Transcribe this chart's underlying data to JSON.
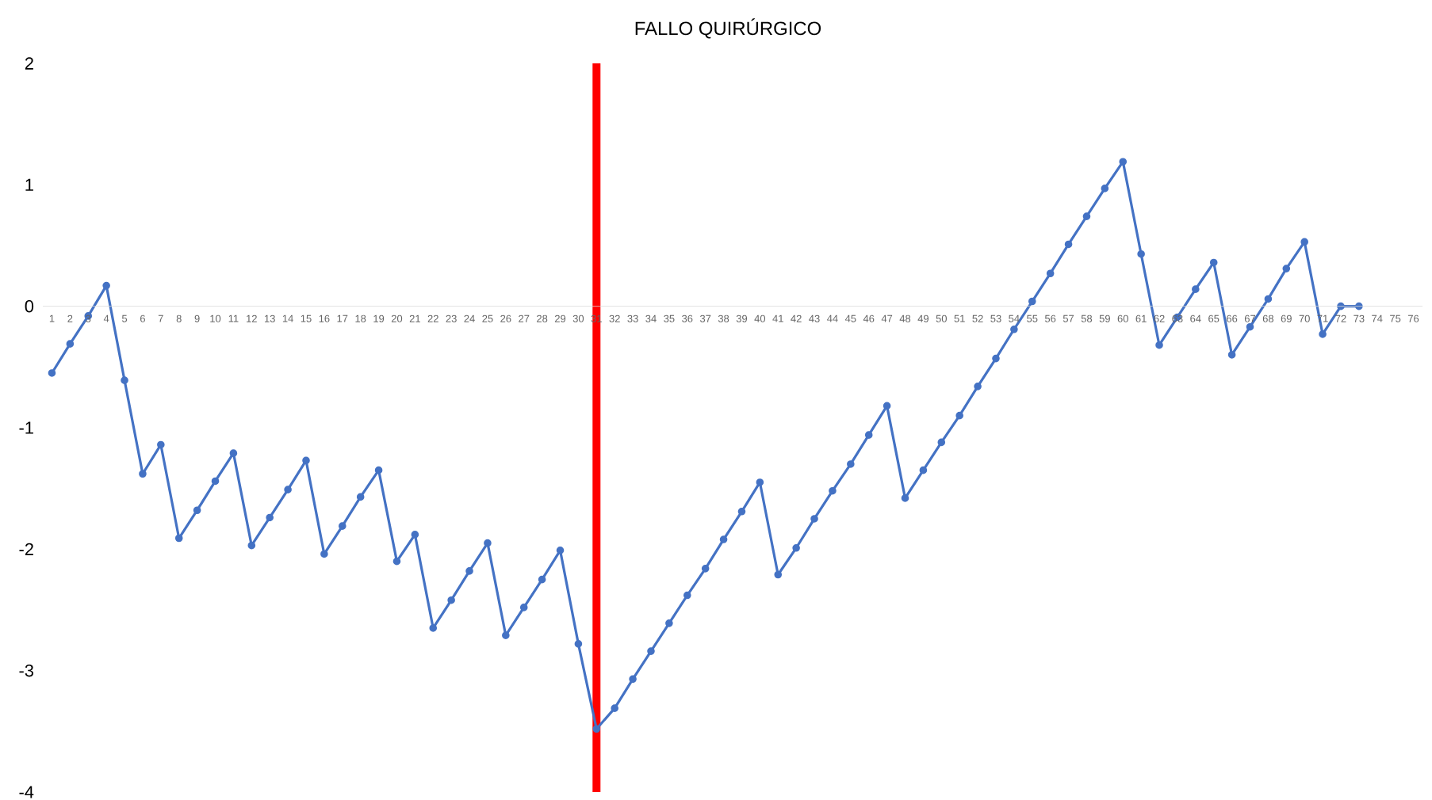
{
  "chart_data": {
    "type": "line",
    "title": "FALLO QUIRÚRGICO",
    "x": [
      1,
      2,
      3,
      4,
      5,
      6,
      7,
      8,
      9,
      10,
      11,
      12,
      13,
      14,
      15,
      16,
      17,
      18,
      19,
      20,
      21,
      22,
      23,
      24,
      25,
      26,
      27,
      28,
      29,
      30,
      31,
      32,
      33,
      34,
      35,
      36,
      37,
      38,
      39,
      40,
      41,
      42,
      43,
      44,
      45,
      46,
      47,
      48,
      49,
      50,
      51,
      52,
      53,
      54,
      55,
      56,
      57,
      58,
      59,
      60,
      61,
      62,
      63,
      64,
      65,
      66,
      67,
      68,
      69,
      70,
      71,
      72,
      73
    ],
    "series": [
      {
        "color": "#4472c4",
        "values": [
          -0.55,
          -0.31,
          -0.08,
          0.17,
          -0.61,
          -1.38,
          -1.14,
          -1.91,
          -1.68,
          -1.44,
          -1.21,
          -1.97,
          -1.74,
          -1.51,
          -1.27,
          -2.04,
          -1.81,
          -1.57,
          -1.35,
          -2.1,
          -1.88,
          -2.65,
          -2.42,
          -2.18,
          -1.95,
          -2.71,
          -2.48,
          -2.25,
          -2.01,
          -2.78,
          -3.48,
          -3.31,
          -3.07,
          -2.84,
          -2.61,
          -2.38,
          -2.16,
          -1.92,
          -1.69,
          -1.45,
          -2.21,
          -1.99,
          -1.75,
          -1.52,
          -1.3,
          -1.06,
          -0.82,
          -1.58,
          -1.35,
          -1.12,
          -0.9,
          -0.66,
          -0.43,
          -0.19,
          0.04,
          0.27,
          0.51,
          0.74,
          0.97,
          1.19,
          0.43,
          -0.32,
          -0.09,
          0.14,
          0.36,
          -0.4,
          -0.17,
          0.06,
          0.31,
          0.53,
          -0.23,
          0.0,
          0.0
        ]
      }
    ],
    "xlim": [
      0.5,
      76.5
    ],
    "xticks": [
      1,
      2,
      3,
      4,
      5,
      6,
      7,
      8,
      9,
      10,
      11,
      12,
      13,
      14,
      15,
      16,
      17,
      18,
      19,
      20,
      21,
      22,
      23,
      24,
      25,
      26,
      27,
      28,
      29,
      30,
      31,
      32,
      33,
      34,
      35,
      36,
      37,
      38,
      39,
      40,
      41,
      42,
      43,
      44,
      45,
      46,
      47,
      48,
      49,
      50,
      51,
      52,
      53,
      54,
      55,
      56,
      57,
      58,
      59,
      60,
      61,
      62,
      63,
      64,
      65,
      66,
      67,
      68,
      69,
      70,
      71,
      72,
      73,
      74,
      75,
      76
    ],
    "ylim": [
      -4,
      2
    ],
    "yticks": [
      -4,
      -3,
      -2,
      -1,
      0,
      1,
      2
    ],
    "ref_lines": [
      {
        "axis": "x",
        "value": 31,
        "color": "#ff0000"
      }
    ],
    "marker": "circle",
    "line_style": "solid"
  }
}
